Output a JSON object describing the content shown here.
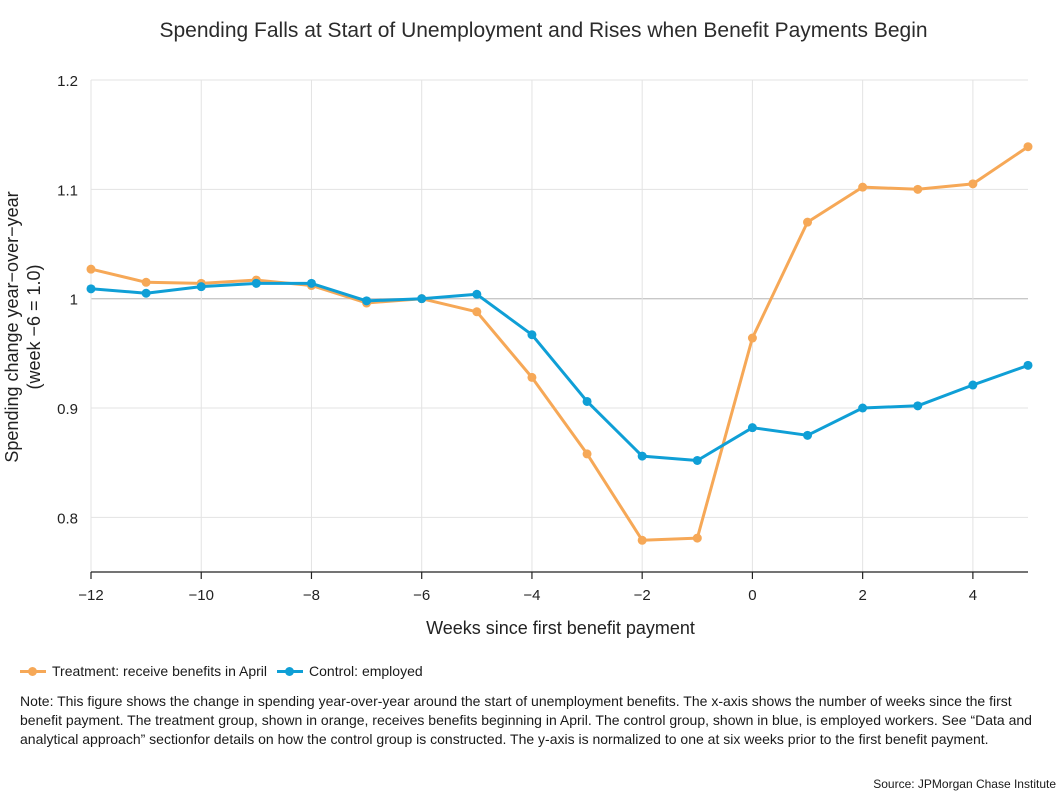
{
  "colors": {
    "treatment": "#f6a857",
    "control": "#0f9fd6",
    "grid": "#e3e3e3",
    "baseline": "#c8c8c8",
    "axis": "#222222"
  },
  "chart_data": {
    "type": "line",
    "title": "Spending Falls at Start of Unemployment and Rises when Benefit Payments Begin",
    "xlabel": "Weeks since first benefit payment",
    "ylabel_line1": "Spending change year−over−year",
    "ylabel_line2": "(week −6 = 1.0)",
    "xlim": [
      -12,
      5
    ],
    "ylim": [
      0.75,
      1.2
    ],
    "x_ticks": [
      -12,
      -10,
      -8,
      -6,
      -4,
      -2,
      0,
      2,
      4
    ],
    "x_tick_labels": [
      "−12",
      "−10",
      "−8",
      "−6",
      "−4",
      "−2",
      "0",
      "2",
      "4"
    ],
    "y_ticks": [
      0.8,
      0.9,
      1.0,
      1.1,
      1.2
    ],
    "y_tick_labels": [
      "0.8",
      "0.9",
      "1",
      "1.1",
      "1.2"
    ],
    "baseline": 1.0,
    "x": [
      -12,
      -11,
      -10,
      -9,
      -8,
      -7,
      -6,
      -5,
      -4,
      -3,
      -2,
      -1,
      0,
      1,
      2,
      3,
      4,
      5
    ],
    "series": [
      {
        "name": "Treatment: receive benefits in April",
        "key": "treatment",
        "values": [
          1.027,
          1.015,
          1.014,
          1.017,
          1.012,
          0.996,
          1.0,
          0.988,
          0.928,
          0.858,
          0.779,
          0.781,
          0.964,
          1.07,
          1.102,
          1.1,
          1.105,
          1.139
        ]
      },
      {
        "name": "Control: employed",
        "key": "control",
        "values": [
          1.009,
          1.005,
          1.011,
          1.014,
          1.014,
          0.998,
          1.0,
          1.004,
          0.967,
          0.906,
          0.856,
          0.852,
          0.882,
          0.875,
          0.9,
          0.902,
          0.921,
          0.939
        ]
      }
    ]
  },
  "legend": {
    "treatment_label": "Treatment: receive benefits in April",
    "control_label": "Control: employed"
  },
  "note": "Note: This figure shows the change in spending year-over-year around the start of unemployment benefits. The x-axis shows the number of weeks since the first benefit payment. The treatment group, shown in orange, receives benefits beginning in April. The control group, shown in blue, is employed workers. See “Data and analytical approach” sectionfor details on how the control group is constructed. The y-axis is normalized to one at six weeks prior to the first benefit payment.",
  "source": "Source: JPMorgan Chase Institute"
}
